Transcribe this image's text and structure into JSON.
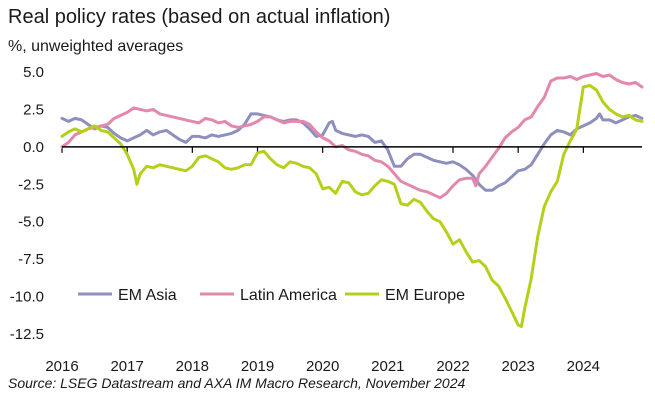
{
  "title": "Real policy rates (based on actual inflation)",
  "subtitle": "%, unweighted averages",
  "source": "Source: LSEG Datastream and AXA IM Macro Research, November 2024",
  "colors": {
    "em_asia": "#8e8fbf",
    "latin_america": "#e388ad",
    "em_europe": "#b7cf1a",
    "axis": "#000000"
  },
  "chart_data": {
    "type": "line",
    "title": "Real policy rates (based on actual inflation)",
    "ylabel": "%, unweighted averages",
    "ylim": [
      -12.5,
      5.0
    ],
    "xlim": [
      2016.0,
      2024.9
    ],
    "yticks": [
      5.0,
      2.5,
      0.0,
      -2.5,
      -5.0,
      -7.5,
      -10.0,
      -12.5
    ],
    "ytick_labels": [
      "5.0",
      "2.5",
      "0.0",
      "-2.5",
      "-5.0",
      "-7.5",
      "-10.0",
      "-12.5"
    ],
    "xticks": [
      2016,
      2017,
      2018,
      2019,
      2020,
      2021,
      2022,
      2023,
      2024
    ],
    "xtick_labels": [
      "2016",
      "2017",
      "2018",
      "2019",
      "2020",
      "2021",
      "2022",
      "2023",
      "2024"
    ],
    "grid": false,
    "legend": "bottom-left",
    "series": [
      {
        "name": "EM Asia",
        "points": [
          [
            2016.0,
            1.9
          ],
          [
            2016.1,
            1.7
          ],
          [
            2016.2,
            1.9
          ],
          [
            2016.3,
            1.8
          ],
          [
            2016.4,
            1.5
          ],
          [
            2016.5,
            1.2
          ],
          [
            2016.6,
            1.4
          ],
          [
            2016.7,
            1.3
          ],
          [
            2016.8,
            0.9
          ],
          [
            2016.9,
            0.6
          ],
          [
            2017.0,
            0.4
          ],
          [
            2017.1,
            0.6
          ],
          [
            2017.2,
            0.8
          ],
          [
            2017.3,
            1.1
          ],
          [
            2017.4,
            0.8
          ],
          [
            2017.5,
            1.0
          ],
          [
            2017.6,
            1.1
          ],
          [
            2017.7,
            0.8
          ],
          [
            2017.8,
            0.5
          ],
          [
            2017.9,
            0.3
          ],
          [
            2018.0,
            0.7
          ],
          [
            2018.1,
            0.7
          ],
          [
            2018.2,
            0.6
          ],
          [
            2018.3,
            0.8
          ],
          [
            2018.4,
            0.7
          ],
          [
            2018.5,
            0.8
          ],
          [
            2018.6,
            0.9
          ],
          [
            2018.7,
            1.1
          ],
          [
            2018.8,
            1.5
          ],
          [
            2018.9,
            2.2
          ],
          [
            2019.0,
            2.2
          ],
          [
            2019.1,
            2.1
          ],
          [
            2019.2,
            2.0
          ],
          [
            2019.3,
            1.8
          ],
          [
            2019.4,
            1.7
          ],
          [
            2019.5,
            1.8
          ],
          [
            2019.6,
            1.8
          ],
          [
            2019.7,
            1.6
          ],
          [
            2019.8,
            1.2
          ],
          [
            2019.9,
            0.7
          ],
          [
            2020.0,
            0.8
          ],
          [
            2020.1,
            1.6
          ],
          [
            2020.15,
            1.7
          ],
          [
            2020.2,
            1.1
          ],
          [
            2020.3,
            0.9
          ],
          [
            2020.4,
            0.8
          ],
          [
            2020.5,
            0.7
          ],
          [
            2020.6,
            0.8
          ],
          [
            2020.7,
            0.7
          ],
          [
            2020.8,
            0.3
          ],
          [
            2020.9,
            0.4
          ],
          [
            2021.0,
            -0.2
          ],
          [
            2021.1,
            -1.3
          ],
          [
            2021.2,
            -1.3
          ],
          [
            2021.3,
            -0.8
          ],
          [
            2021.4,
            -0.5
          ],
          [
            2021.5,
            -0.5
          ],
          [
            2021.6,
            -0.7
          ],
          [
            2021.7,
            -0.9
          ],
          [
            2021.8,
            -1.0
          ],
          [
            2021.9,
            -1.1
          ],
          [
            2022.0,
            -1.0
          ],
          [
            2022.1,
            -1.2
          ],
          [
            2022.2,
            -1.5
          ],
          [
            2022.3,
            -1.9
          ],
          [
            2022.4,
            -2.5
          ],
          [
            2022.5,
            -2.9
          ],
          [
            2022.6,
            -2.9
          ],
          [
            2022.7,
            -2.6
          ],
          [
            2022.8,
            -2.4
          ],
          [
            2022.9,
            -2.0
          ],
          [
            2023.0,
            -1.6
          ],
          [
            2023.1,
            -1.5
          ],
          [
            2023.2,
            -1.2
          ],
          [
            2023.3,
            -0.5
          ],
          [
            2023.4,
            0.2
          ],
          [
            2023.5,
            0.8
          ],
          [
            2023.6,
            1.1
          ],
          [
            2023.7,
            1.0
          ],
          [
            2023.8,
            0.8
          ],
          [
            2023.9,
            1.2
          ],
          [
            2024.0,
            1.4
          ],
          [
            2024.1,
            1.6
          ],
          [
            2024.2,
            1.9
          ],
          [
            2024.25,
            2.2
          ],
          [
            2024.3,
            1.8
          ],
          [
            2024.4,
            1.8
          ],
          [
            2024.5,
            1.6
          ],
          [
            2024.6,
            1.8
          ],
          [
            2024.7,
            2.0
          ],
          [
            2024.8,
            2.1
          ],
          [
            2024.9,
            1.9
          ]
        ]
      },
      {
        "name": "Latin America",
        "points": [
          [
            2016.0,
            0.0
          ],
          [
            2016.1,
            0.3
          ],
          [
            2016.2,
            0.8
          ],
          [
            2016.3,
            1.0
          ],
          [
            2016.4,
            1.2
          ],
          [
            2016.5,
            1.3
          ],
          [
            2016.6,
            1.4
          ],
          [
            2016.7,
            1.5
          ],
          [
            2016.8,
            1.9
          ],
          [
            2016.9,
            2.1
          ],
          [
            2017.0,
            2.3
          ],
          [
            2017.1,
            2.6
          ],
          [
            2017.2,
            2.5
          ],
          [
            2017.3,
            2.4
          ],
          [
            2017.4,
            2.5
          ],
          [
            2017.5,
            2.2
          ],
          [
            2017.6,
            2.1
          ],
          [
            2017.7,
            2.0
          ],
          [
            2017.8,
            1.9
          ],
          [
            2017.9,
            1.8
          ],
          [
            2018.0,
            1.7
          ],
          [
            2018.1,
            1.6
          ],
          [
            2018.2,
            1.9
          ],
          [
            2018.3,
            1.8
          ],
          [
            2018.4,
            1.6
          ],
          [
            2018.5,
            1.7
          ],
          [
            2018.6,
            1.4
          ],
          [
            2018.7,
            1.3
          ],
          [
            2018.8,
            1.4
          ],
          [
            2018.9,
            1.5
          ],
          [
            2019.0,
            1.7
          ],
          [
            2019.1,
            2.0
          ],
          [
            2019.2,
            2.0
          ],
          [
            2019.3,
            1.8
          ],
          [
            2019.4,
            1.6
          ],
          [
            2019.5,
            1.7
          ],
          [
            2019.6,
            1.7
          ],
          [
            2019.7,
            1.7
          ],
          [
            2019.8,
            1.5
          ],
          [
            2019.9,
            1.0
          ],
          [
            2020.0,
            0.6
          ],
          [
            2020.1,
            0.4
          ],
          [
            2020.2,
            0.0
          ],
          [
            2020.3,
            0.1
          ],
          [
            2020.4,
            -0.2
          ],
          [
            2020.5,
            -0.3
          ],
          [
            2020.6,
            -0.5
          ],
          [
            2020.7,
            -0.6
          ],
          [
            2020.8,
            -0.9
          ],
          [
            2020.9,
            -1.0
          ],
          [
            2021.0,
            -1.3
          ],
          [
            2021.1,
            -1.8
          ],
          [
            2021.2,
            -2.3
          ],
          [
            2021.3,
            -2.5
          ],
          [
            2021.4,
            -2.7
          ],
          [
            2021.5,
            -2.9
          ],
          [
            2021.6,
            -3.0
          ],
          [
            2021.7,
            -3.2
          ],
          [
            2021.8,
            -3.4
          ],
          [
            2021.9,
            -3.1
          ],
          [
            2022.0,
            -2.6
          ],
          [
            2022.1,
            -2.2
          ],
          [
            2022.2,
            -2.1
          ],
          [
            2022.3,
            -2.1
          ],
          [
            2022.35,
            -2.6
          ],
          [
            2022.4,
            -1.8
          ],
          [
            2022.5,
            -1.3
          ],
          [
            2022.6,
            -0.7
          ],
          [
            2022.7,
            -0.1
          ],
          [
            2022.8,
            0.6
          ],
          [
            2022.9,
            1.0
          ],
          [
            2023.0,
            1.3
          ],
          [
            2023.1,
            1.8
          ],
          [
            2023.2,
            2.0
          ],
          [
            2023.3,
            2.7
          ],
          [
            2023.4,
            3.3
          ],
          [
            2023.5,
            4.4
          ],
          [
            2023.6,
            4.6
          ],
          [
            2023.7,
            4.6
          ],
          [
            2023.8,
            4.7
          ],
          [
            2023.9,
            4.5
          ],
          [
            2024.0,
            4.7
          ],
          [
            2024.1,
            4.8
          ],
          [
            2024.2,
            4.9
          ],
          [
            2024.3,
            4.7
          ],
          [
            2024.4,
            4.8
          ],
          [
            2024.5,
            4.5
          ],
          [
            2024.6,
            4.3
          ],
          [
            2024.7,
            4.2
          ],
          [
            2024.8,
            4.3
          ],
          [
            2024.9,
            4.0
          ]
        ]
      },
      {
        "name": "EM Europe",
        "points": [
          [
            2016.0,
            0.7
          ],
          [
            2016.1,
            1.0
          ],
          [
            2016.2,
            1.2
          ],
          [
            2016.3,
            1.0
          ],
          [
            2016.4,
            1.2
          ],
          [
            2016.5,
            1.4
          ],
          [
            2016.6,
            1.1
          ],
          [
            2016.7,
            1.0
          ],
          [
            2016.8,
            0.6
          ],
          [
            2016.9,
            0.2
          ],
          [
            2017.0,
            -0.5
          ],
          [
            2017.1,
            -1.5
          ],
          [
            2017.15,
            -2.5
          ],
          [
            2017.2,
            -1.8
          ],
          [
            2017.3,
            -1.3
          ],
          [
            2017.4,
            -1.4
          ],
          [
            2017.5,
            -1.2
          ],
          [
            2017.6,
            -1.3
          ],
          [
            2017.7,
            -1.4
          ],
          [
            2017.8,
            -1.5
          ],
          [
            2017.9,
            -1.6
          ],
          [
            2018.0,
            -1.3
          ],
          [
            2018.1,
            -0.7
          ],
          [
            2018.2,
            -0.6
          ],
          [
            2018.3,
            -0.8
          ],
          [
            2018.4,
            -1.0
          ],
          [
            2018.5,
            -1.4
          ],
          [
            2018.6,
            -1.5
          ],
          [
            2018.7,
            -1.4
          ],
          [
            2018.8,
            -1.2
          ],
          [
            2018.9,
            -1.2
          ],
          [
            2019.0,
            -0.4
          ],
          [
            2019.1,
            -0.3
          ],
          [
            2019.2,
            -0.8
          ],
          [
            2019.3,
            -1.2
          ],
          [
            2019.4,
            -1.4
          ],
          [
            2019.5,
            -1.0
          ],
          [
            2019.6,
            -1.1
          ],
          [
            2019.7,
            -1.3
          ],
          [
            2019.8,
            -1.4
          ],
          [
            2019.9,
            -1.8
          ],
          [
            2020.0,
            -2.8
          ],
          [
            2020.1,
            -2.7
          ],
          [
            2020.2,
            -3.1
          ],
          [
            2020.3,
            -2.3
          ],
          [
            2020.4,
            -2.4
          ],
          [
            2020.5,
            -3.0
          ],
          [
            2020.6,
            -3.2
          ],
          [
            2020.7,
            -3.1
          ],
          [
            2020.8,
            -2.6
          ],
          [
            2020.9,
            -2.2
          ],
          [
            2021.0,
            -2.3
          ],
          [
            2021.1,
            -2.5
          ],
          [
            2021.2,
            -3.8
          ],
          [
            2021.3,
            -3.9
          ],
          [
            2021.4,
            -3.5
          ],
          [
            2021.5,
            -3.7
          ],
          [
            2021.6,
            -4.3
          ],
          [
            2021.7,
            -4.8
          ],
          [
            2021.8,
            -5.0
          ],
          [
            2021.9,
            -5.7
          ],
          [
            2022.0,
            -6.5
          ],
          [
            2022.1,
            -6.2
          ],
          [
            2022.2,
            -7.0
          ],
          [
            2022.3,
            -7.7
          ],
          [
            2022.4,
            -7.6
          ],
          [
            2022.5,
            -8.0
          ],
          [
            2022.6,
            -8.9
          ],
          [
            2022.7,
            -9.3
          ],
          [
            2022.8,
            -10.1
          ],
          [
            2022.9,
            -11.0
          ],
          [
            2023.0,
            -11.9
          ],
          [
            2023.05,
            -12.0
          ],
          [
            2023.1,
            -10.8
          ],
          [
            2023.2,
            -8.8
          ],
          [
            2023.3,
            -6.0
          ],
          [
            2023.4,
            -4.0
          ],
          [
            2023.5,
            -3.0
          ],
          [
            2023.6,
            -2.3
          ],
          [
            2023.7,
            -0.5
          ],
          [
            2023.8,
            0.4
          ],
          [
            2023.9,
            1.2
          ],
          [
            2024.0,
            4.0
          ],
          [
            2024.1,
            4.1
          ],
          [
            2024.2,
            3.8
          ],
          [
            2024.3,
            3.0
          ],
          [
            2024.4,
            2.5
          ],
          [
            2024.5,
            2.2
          ],
          [
            2024.6,
            2.0
          ],
          [
            2024.7,
            2.1
          ],
          [
            2024.8,
            1.8
          ],
          [
            2024.9,
            1.7
          ]
        ]
      }
    ]
  }
}
